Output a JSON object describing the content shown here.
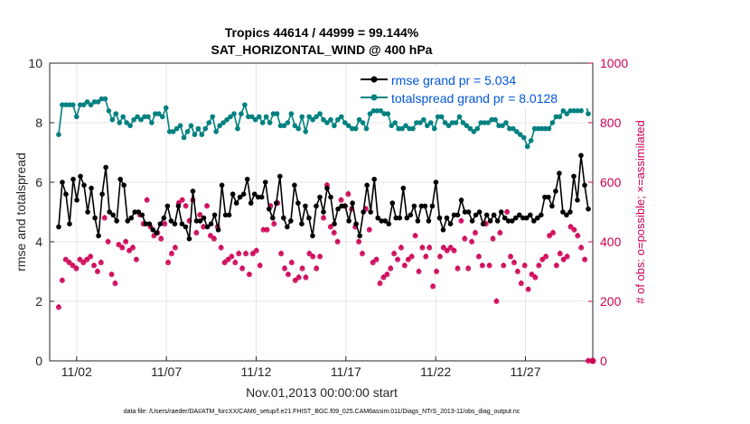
{
  "chart_data": {
    "type": "line",
    "title": "Tropics 44614 / 44999 = 99.144%",
    "subtitle": "SAT_HORIZONTAL_WIND @ 400 hPa",
    "xlabel": "Nov.01,2013 00:00:00 start",
    "ylabel": "rmse and totalspread",
    "ylabel_right": "# of obs: o=possible; ×=assimilated",
    "footnote": "data file: /Users/raeder/DAI/ATM_forcXX/CAM6_setup/f.e21.FHIST_BGC.f09_025.CAM6assim.011/Diags_NTrS_2013-11/obs_diag_output.nc",
    "x_range": [
      0.5,
      30.75
    ],
    "y_range": [
      0,
      10
    ],
    "y2_range": [
      0,
      1000
    ],
    "x_ticks": [
      {
        "v": 2,
        "label": "11/02"
      },
      {
        "v": 7,
        "label": "11/07"
      },
      {
        "v": 12,
        "label": "11/12"
      },
      {
        "v": 17,
        "label": "11/17"
      },
      {
        "v": 22,
        "label": "11/22"
      },
      {
        "v": 27,
        "label": "11/27"
      }
    ],
    "y_ticks": [
      0,
      2,
      4,
      6,
      8,
      10
    ],
    "y2_ticks": [
      0,
      200,
      400,
      600,
      800,
      1000
    ],
    "legend_position": "top-right",
    "colors": {
      "rmse": "#000000",
      "spread": "#008080",
      "obs": "#cc0055",
      "legend_text": "#0055dd",
      "grid": "#e6e6e6"
    },
    "series": [
      {
        "name": "rmse grand pr = 5.034",
        "key": "rmse",
        "axis": "left",
        "values": [
          4.5,
          6.0,
          5.6,
          4.6,
          6.1,
          5.4,
          6.2,
          5.9,
          5.0,
          5.8,
          4.8,
          4.2,
          5.6,
          6.5,
          5.0,
          4.9,
          4.7,
          6.1,
          5.9,
          4.7,
          4.8,
          5.0,
          5.0,
          4.9,
          4.6,
          4.6,
          4.4,
          4.3,
          4.6,
          4.8,
          5.2,
          4.7,
          4.6,
          5.2,
          4.6,
          4.5,
          4.1,
          5.7,
          4.7,
          4.7,
          4.8,
          4.5,
          4.6,
          4.9,
          4.4,
          5.9,
          4.9,
          4.9,
          5.6,
          5.3,
          5.5,
          5.6,
          6.1,
          5.3,
          5.6,
          5.5,
          5.5,
          6.0,
          5.1,
          4.8,
          5.3,
          6.2,
          4.8,
          4.5,
          4.7,
          5.9,
          5.3,
          4.6,
          5.2,
          4.8,
          4.2,
          5.2,
          5.5,
          5.0,
          5.8,
          5.5,
          4.6,
          5.1,
          5.2,
          5.2,
          4.7,
          5.3,
          4.6,
          4.2,
          5.0,
          5.9,
          5.0,
          6.1,
          4.8,
          4.7,
          4.7,
          4.6,
          5.3,
          4.8,
          4.8,
          5.8,
          4.8,
          4.9,
          5.2,
          4.7,
          5.2,
          5.2,
          4.7,
          5.2,
          6.0,
          4.8,
          4.4,
          4.8,
          4.6,
          4.9,
          4.9,
          5.4,
          5.0,
          5.0,
          4.7,
          4.9,
          5.0,
          4.6,
          4.9,
          4.7,
          4.9,
          4.7,
          5.0,
          4.8,
          4.7,
          4.7,
          4.8,
          4.9,
          4.8,
          4.8,
          4.9,
          4.7,
          4.8,
          4.9,
          5.5,
          5.5,
          5.2,
          5.7,
          6.3,
          5.0,
          4.9,
          5.0,
          6.2,
          5.4,
          6.9,
          5.9,
          5.1
        ]
      },
      {
        "name": "totalspread grand pr = 8.0128",
        "key": "spread",
        "axis": "left",
        "values": [
          7.6,
          8.6,
          8.6,
          8.6,
          8.6,
          8.2,
          8.6,
          8.6,
          8.7,
          8.6,
          8.7,
          8.7,
          8.8,
          8.8,
          8.4,
          8.1,
          8.3,
          8.0,
          8.2,
          8.0,
          7.9,
          8.1,
          8.2,
          8.1,
          8.2,
          8.2,
          8.0,
          8.3,
          8.3,
          8.2,
          8.5,
          7.7,
          7.7,
          7.8,
          7.9,
          7.5,
          7.7,
          7.9,
          7.6,
          7.8,
          7.6,
          7.8,
          8.0,
          8.2,
          7.7,
          7.9,
          8.0,
          8.1,
          8.2,
          8.3,
          7.8,
          8.3,
          8.6,
          8.2,
          8.2,
          8.1,
          8.2,
          8.0,
          8.2,
          8.0,
          8.3,
          8.3,
          7.9,
          7.9,
          8.0,
          8.3,
          7.9,
          7.8,
          8.2,
          7.7,
          8.2,
          8.1,
          8.2,
          8.3,
          8.1,
          8.0,
          8.1,
          7.9,
          8.1,
          8.2,
          8.0,
          7.9,
          7.8,
          7.8,
          8.1,
          8.0,
          7.8,
          8.3,
          8.4,
          8.4,
          8.4,
          8.3,
          8.3,
          7.9,
          8.0,
          7.8,
          7.8,
          7.9,
          7.8,
          7.8,
          8.0,
          8.0,
          8.1,
          7.9,
          8.0,
          7.8,
          8.2,
          8.2,
          8.0,
          7.9,
          8.0,
          8.0,
          8.2,
          8.0,
          7.9,
          7.8,
          7.7,
          7.8,
          8.0,
          8.0,
          8.0,
          8.1,
          8.1,
          7.9,
          7.9,
          8.0,
          7.8,
          7.8,
          7.7,
          7.6,
          7.5,
          7.2,
          7.4,
          7.8,
          7.8,
          7.8,
          7.8,
          7.8,
          8.0,
          8.2,
          8.2,
          8.4,
          8.3,
          8.4,
          8.4,
          8.4,
          8.4,
          8.8,
          8.3
        ]
      },
      {
        "name": "obs",
        "key": "obs",
        "axis": "right",
        "values": [
          180,
          270,
          340,
          330,
          320,
          310,
          340,
          330,
          340,
          350,
          320,
          300,
          330,
          480,
          400,
          290,
          260,
          390,
          380,
          400,
          370,
          380,
          340,
          490,
          460,
          540,
          450,
          420,
          430,
          410,
          460,
          330,
          360,
          380,
          530,
          540,
          520,
          470,
          540,
          430,
          490,
          450,
          520,
          420,
          410,
          450,
          380,
          330,
          340,
          350,
          330,
          360,
          310,
          360,
          290,
          360,
          370,
          320,
          440,
          440,
          520,
          460,
          530,
          360,
          310,
          290,
          330,
          270,
          280,
          310,
          280,
          360,
          350,
          310,
          350,
          480,
          590,
          450,
          430,
          400,
          540,
          520,
          560,
          510,
          450,
          400,
          360,
          510,
          440,
          330,
          340,
          260,
          280,
          290,
          310,
          360,
          340,
          380,
          320,
          340,
          350,
          420,
          300,
          380,
          350,
          380,
          250,
          300,
          350,
          380,
          370,
          380,
          370,
          310,
          470,
          410,
          310,
          400,
          430,
          350,
          320,
          460,
          320,
          410,
          200,
          430,
          320,
          500,
          350,
          330,
          300,
          260,
          320,
          240,
          290,
          280,
          320,
          340,
          350,
          420,
          430,
          320,
          360,
          340,
          350,
          450,
          440,
          420,
          380,
          340,
          0
        ],
        "shown_at_bottom_only": false
      }
    ],
    "obs_last_point": {
      "x": 30.75,
      "v": 0
    }
  }
}
